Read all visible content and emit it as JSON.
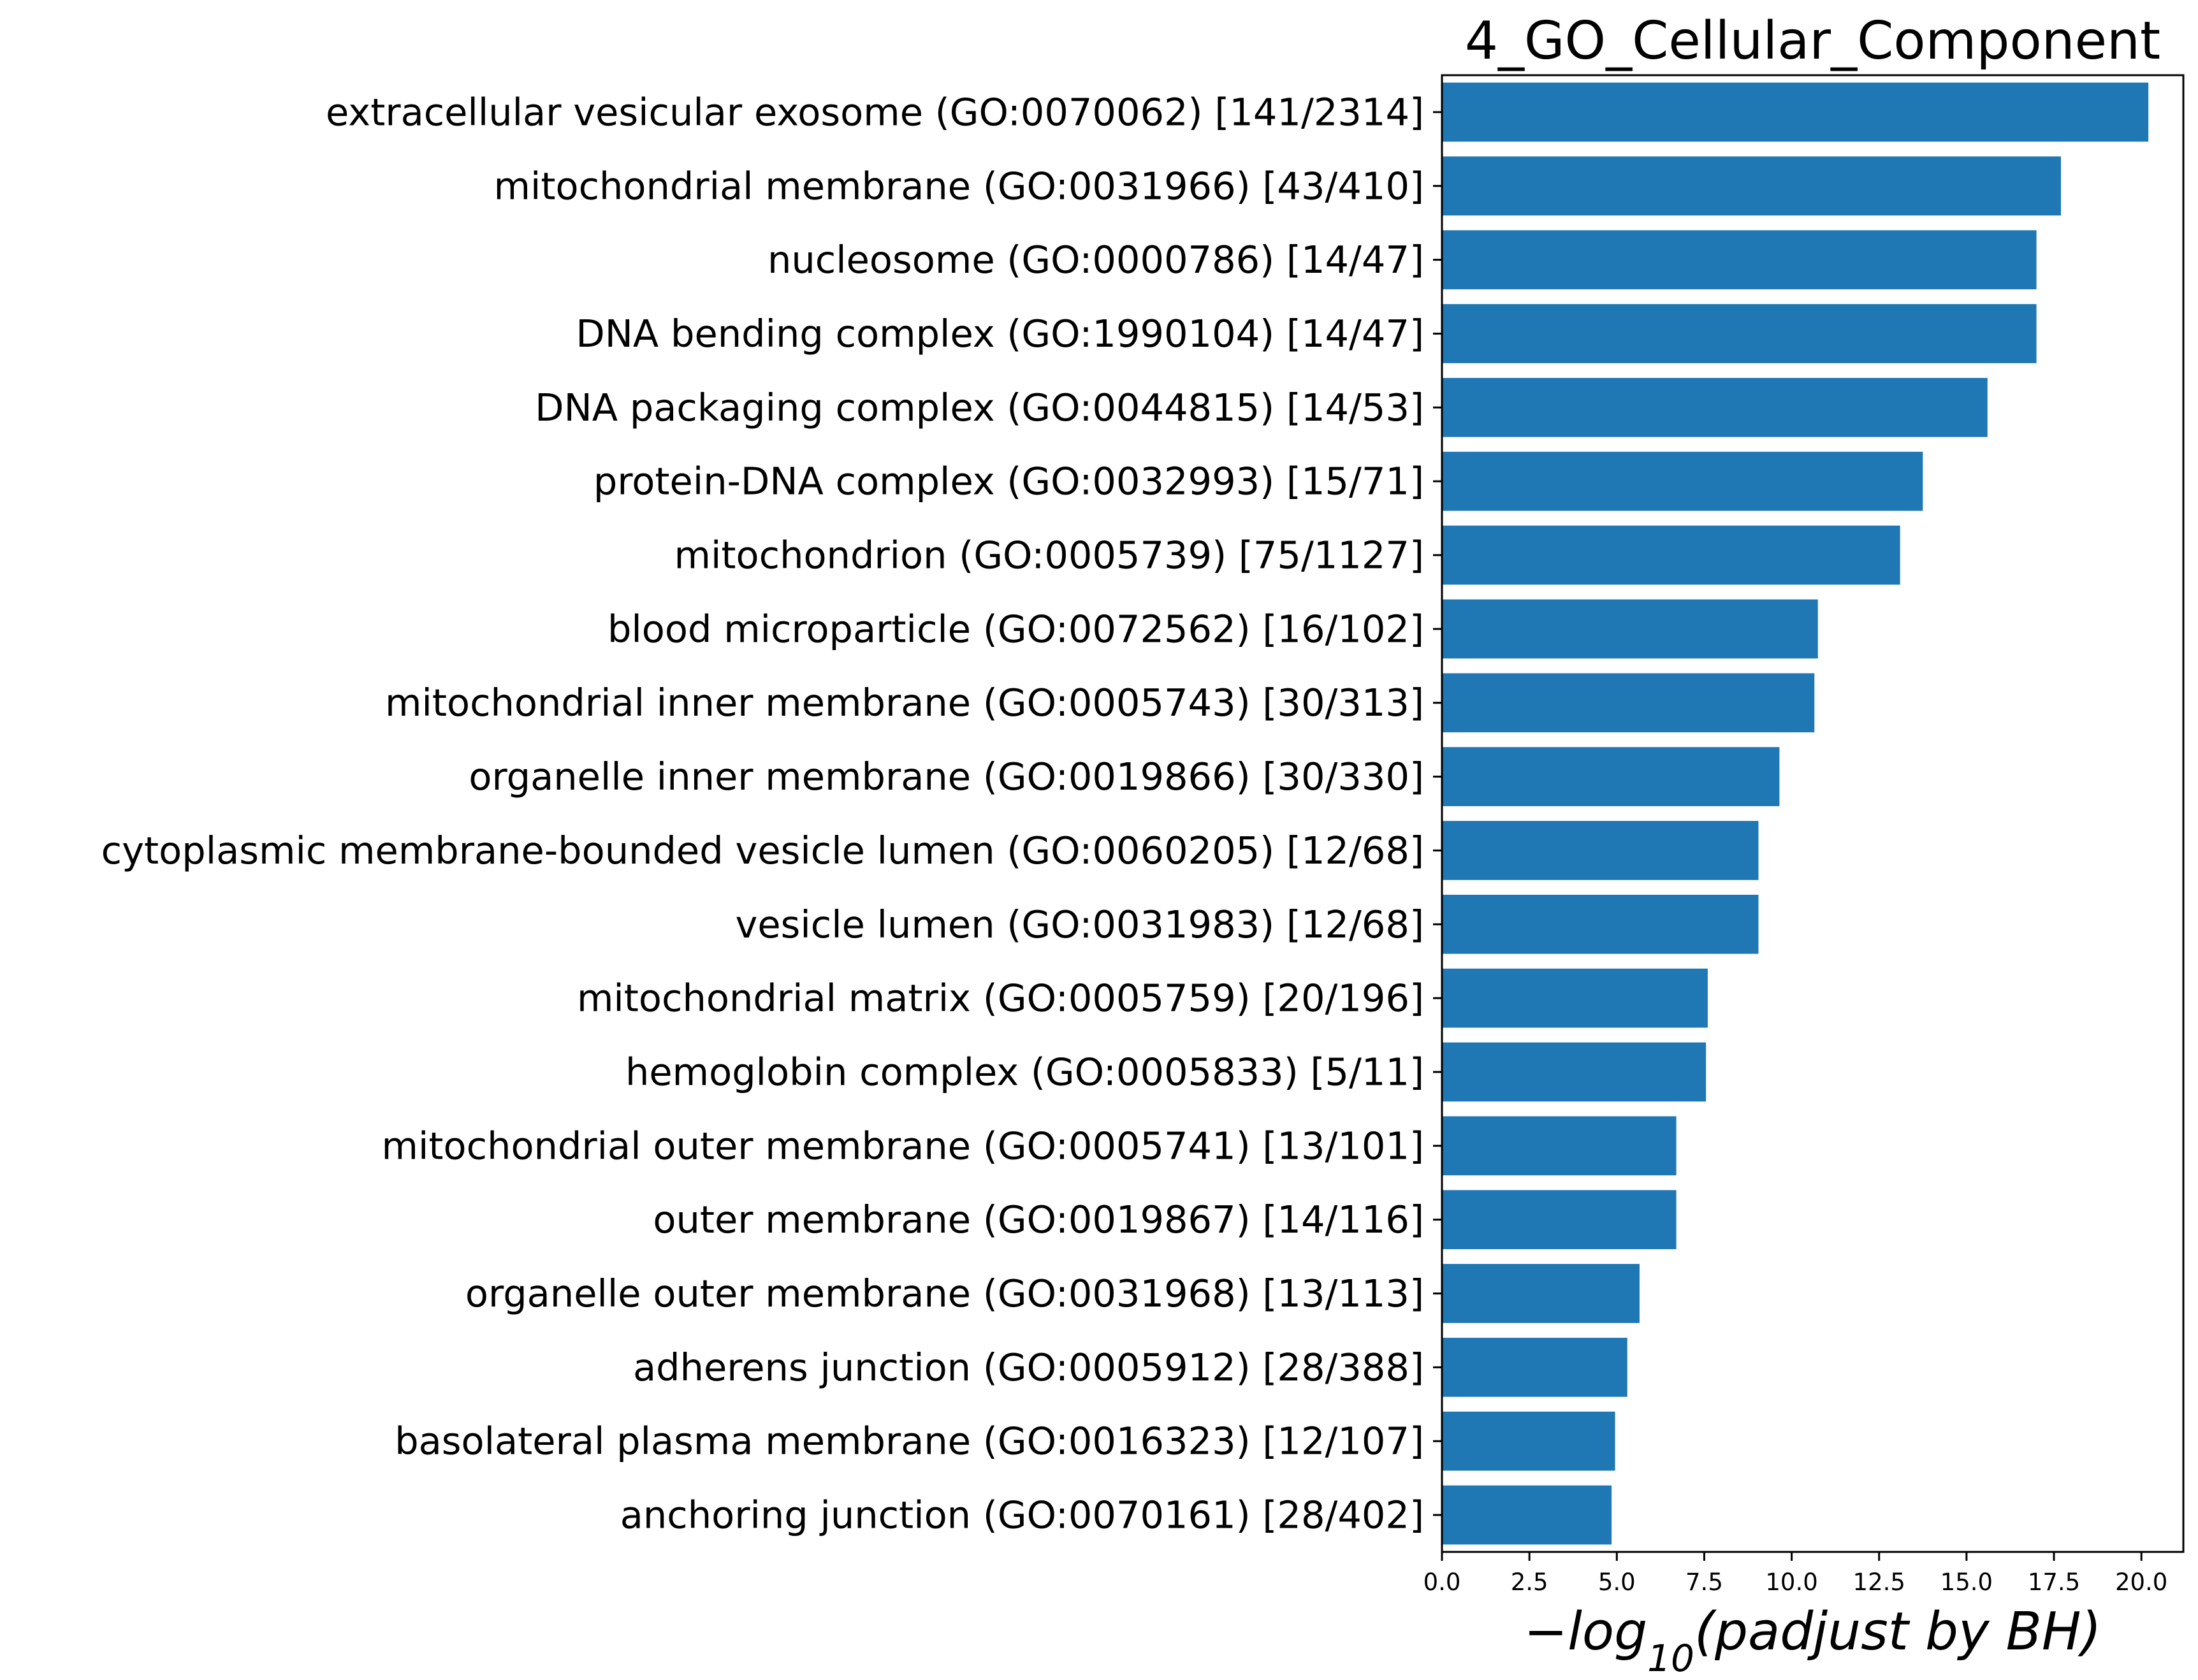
{
  "chart_data": {
    "type": "bar",
    "orientation": "horizontal",
    "title": "4_GO_Cellular_Component",
    "xlabel": "−log10(padjust by BH)",
    "xlabel_parts": {
      "prefix": "−log",
      "subscript": "10",
      "suffix": "(padjust by BH)"
    },
    "ylabel": "",
    "xlim": [
      0,
      21.2
    ],
    "xticks": [
      "0.0",
      "2.5",
      "5.0",
      "7.5",
      "10.0",
      "12.5",
      "15.0",
      "17.5",
      "20.0"
    ],
    "xtick_values": [
      0,
      2.5,
      5,
      7.5,
      10,
      12.5,
      15,
      17.5,
      20
    ],
    "grid": false,
    "bar_color": "#1f77b4",
    "categories": [
      "extracellular vesicular exosome (GO:0070062) [141/2314]",
      "mitochondrial membrane (GO:0031966) [43/410]",
      "nucleosome (GO:0000786) [14/47]",
      "DNA bending complex (GO:1990104) [14/47]",
      "DNA packaging complex (GO:0044815) [14/53]",
      "protein-DNA complex (GO:0032993) [15/71]",
      "mitochondrion (GO:0005739) [75/1127]",
      "blood microparticle (GO:0072562) [16/102]",
      "mitochondrial inner membrane (GO:0005743) [30/313]",
      "organelle inner membrane (GO:0019866) [30/330]",
      "cytoplasmic membrane-bounded vesicle lumen (GO:0060205) [12/68]",
      "vesicle lumen (GO:0031983) [12/68]",
      "mitochondrial matrix (GO:0005759) [20/196]",
      "hemoglobin complex (GO:0005833) [5/11]",
      "mitochondrial outer membrane (GO:0005741) [13/101]",
      "outer membrane (GO:0019867) [14/116]",
      "organelle outer membrane (GO:0031968) [13/113]",
      "adherens junction (GO:0005912) [28/388]",
      "basolateral plasma membrane (GO:0016323) [12/107]",
      "anchoring junction (GO:0070161) [28/402]"
    ],
    "values": [
      20.2,
      17.7,
      17.0,
      17.0,
      15.6,
      13.75,
      13.1,
      10.75,
      10.65,
      9.65,
      9.05,
      9.05,
      7.6,
      7.55,
      6.7,
      6.7,
      5.65,
      5.3,
      4.95,
      4.85
    ]
  }
}
